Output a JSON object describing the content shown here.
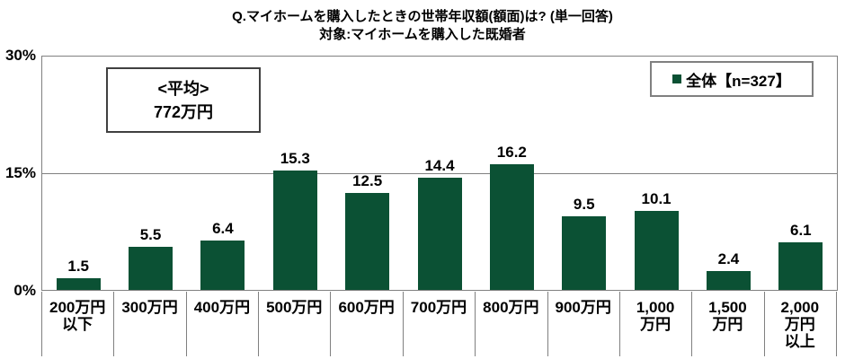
{
  "title": "Q.マイホームを購入したときの世帯年収額(額面)は? (単一回答)",
  "subtitle": "対象:マイホームを購入した既婚者",
  "average_box": {
    "line1": "<平均>",
    "line2": "772万円"
  },
  "legend": {
    "label": "全体【n=327】",
    "marker_color": "#0b5134",
    "position": "top-right"
  },
  "y_axis": {
    "ticks": [
      "30%",
      "15%",
      "0%"
    ]
  },
  "colors": {
    "bar": "#0b5134",
    "grid": "#808080",
    "text": "#000000"
  },
  "chart_data": {
    "type": "bar",
    "categories": [
      "200万円\n以下",
      "300万円",
      "400万円",
      "500万円",
      "600万円",
      "700万円",
      "800万円",
      "900万円",
      "1,000\n万円",
      "1,500\n万円",
      "2,000\n万円\n以上"
    ],
    "values": [
      1.5,
      5.5,
      6.4,
      15.3,
      12.5,
      14.4,
      16.2,
      9.5,
      10.1,
      2.4,
      6.1
    ],
    "title": "Q.マイホームを購入したときの世帯年収額(額面)は? (単一回答)",
    "xlabel": "",
    "ylabel": "",
    "ylim": [
      0,
      30
    ],
    "ytick_values": [
      0,
      15,
      30
    ],
    "grid": "horizontal",
    "legend_entries": [
      "全体【n=327】"
    ],
    "bar_color": "#0b5134"
  }
}
